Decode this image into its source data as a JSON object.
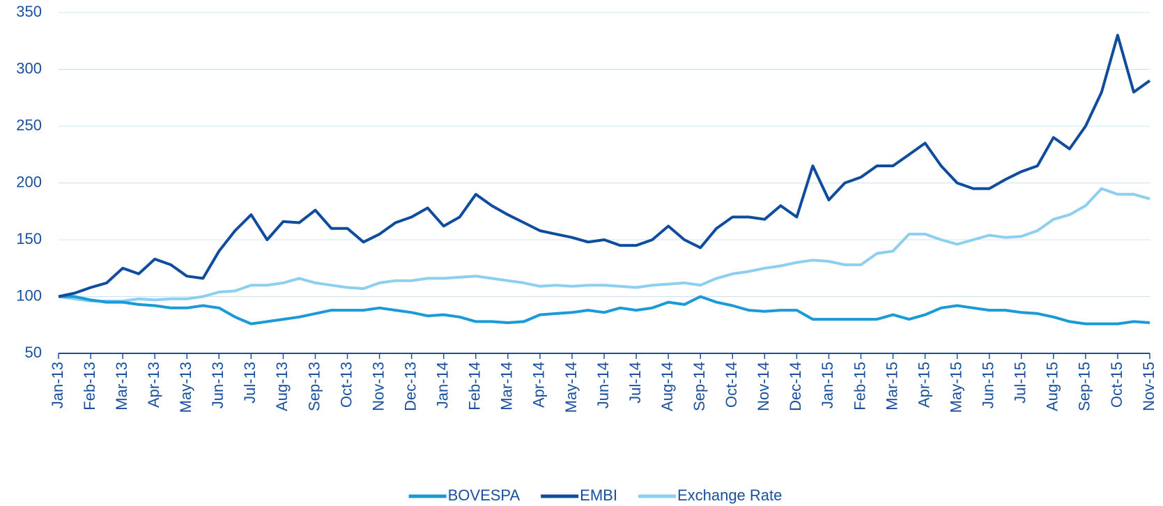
{
  "chart_data": {
    "type": "line",
    "categories": [
      "Jan-13",
      null,
      "Feb-13",
      null,
      "Mar-13",
      null,
      "Apr-13",
      null,
      "May-13",
      null,
      "Jun-13",
      null,
      "Jul-13",
      null,
      "Aug-13",
      null,
      "Sep-13",
      null,
      "Oct-13",
      null,
      "Nov-13",
      null,
      "Dec-13",
      null,
      "Jan-14",
      null,
      "Feb-14",
      null,
      "Mar-14",
      null,
      "Apr-14",
      null,
      "May-14",
      null,
      "Jun-14",
      null,
      "Jul-14",
      null,
      "Aug-14",
      null,
      "Sep-14",
      null,
      "Oct-14",
      null,
      "Nov-14",
      null,
      "Dec-14",
      null,
      "Jan-15",
      null,
      "Feb-15",
      null,
      "Mar-15",
      null,
      "Apr-15",
      null,
      "May-15",
      null,
      "Jun-15",
      null,
      "Jul-15",
      null,
      "Aug-15",
      null,
      "Sep-15",
      null,
      "Oct-15",
      null,
      "Nov-15"
    ],
    "series": [
      {
        "name": "BOVESPA",
        "color": "#1b9ad8",
        "values": [
          100,
          100,
          97,
          95,
          95,
          93,
          92,
          90,
          90,
          92,
          90,
          82,
          76,
          78,
          80,
          82,
          85,
          88,
          88,
          88,
          90,
          88,
          86,
          83,
          84,
          82,
          78,
          78,
          77,
          78,
          84,
          85,
          86,
          88,
          86,
          90,
          88,
          90,
          95,
          93,
          100,
          95,
          92,
          88,
          87,
          88,
          88,
          80,
          80,
          80,
          80,
          80,
          84,
          80,
          84,
          90,
          92,
          90,
          88,
          88,
          86,
          85,
          82,
          78,
          76,
          76,
          76,
          78,
          77
        ]
      },
      {
        "name": "EMBI",
        "color": "#0f4c9e",
        "values": [
          100,
          103,
          108,
          112,
          125,
          120,
          133,
          128,
          118,
          116,
          140,
          158,
          172,
          150,
          166,
          165,
          176,
          160,
          160,
          148,
          155,
          165,
          170,
          178,
          162,
          170,
          190,
          180,
          172,
          165,
          158,
          155,
          152,
          148,
          150,
          145,
          145,
          150,
          162,
          150,
          143,
          160,
          170,
          170,
          168,
          180,
          170,
          215,
          185,
          200,
          205,
          215,
          215,
          225,
          235,
          215,
          200,
          195,
          195,
          203,
          210,
          215,
          240,
          230,
          250,
          280,
          330,
          280,
          290
        ]
      },
      {
        "name": "Exchange Rate",
        "color": "#8dcfee",
        "values": [
          100,
          98,
          96,
          96,
          96,
          98,
          97,
          98,
          98,
          100,
          104,
          105,
          110,
          110,
          112,
          116,
          112,
          110,
          108,
          107,
          112,
          114,
          114,
          116,
          116,
          117,
          118,
          116,
          114,
          112,
          109,
          110,
          109,
          110,
          110,
          109,
          108,
          110,
          111,
          112,
          110,
          116,
          120,
          122,
          125,
          127,
          130,
          132,
          131,
          128,
          128,
          138,
          140,
          155,
          155,
          150,
          146,
          150,
          154,
          152,
          153,
          158,
          168,
          172,
          180,
          195,
          190,
          190,
          186
        ]
      }
    ],
    "ylim": [
      50,
      350
    ],
    "yticks": [
      50,
      100,
      150,
      200,
      250,
      300,
      350
    ],
    "grid": true,
    "legend": "bottom"
  }
}
